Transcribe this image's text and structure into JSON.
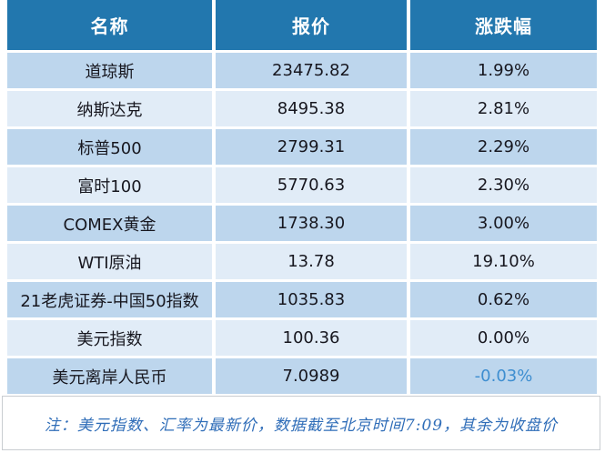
{
  "chart_data": {
    "type": "table",
    "columns": [
      "名称",
      "报价",
      "涨跌幅"
    ],
    "rows": [
      [
        "道琼斯",
        "23475.82",
        "1.99%"
      ],
      [
        "纳斯达克",
        "8495.38",
        "2.81%"
      ],
      [
        "标普500",
        "2799.31",
        "2.29%"
      ],
      [
        "富时100",
        "5770.63",
        "2.30%"
      ],
      [
        "COMEX黄金",
        "1738.30",
        "3.00%"
      ],
      [
        "WTI原油",
        "13.78",
        "19.10%"
      ],
      [
        "21老虎证券-中国50指数",
        "1035.83",
        "0.62%"
      ],
      [
        "美元指数",
        "100.36",
        "0.00%"
      ],
      [
        "美元离岸人民币",
        "7.0989",
        "-0.03%"
      ]
    ]
  },
  "footnote": "注：美元指数、汇率为最新价，数据截至北京时间7:09，其余为收盘价",
  "colors": {
    "header_bg": "#2277ae",
    "header_text": "#ffffff",
    "row_odd_bg": "#bdd6ed",
    "row_even_bg": "#e1ecf7",
    "body_text": "#17171f",
    "negative_change_text": "#3e8ed0",
    "footnote_text": "#2f6db8"
  }
}
